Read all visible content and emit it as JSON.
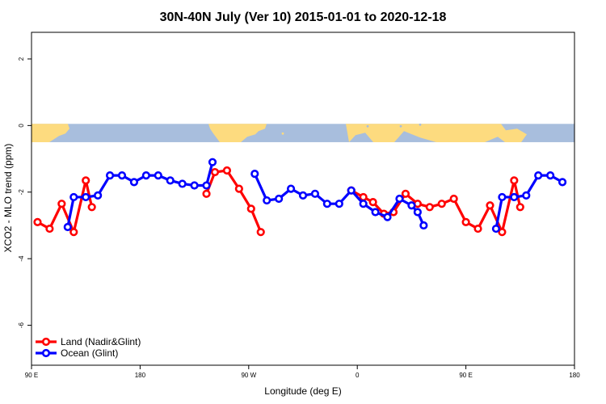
{
  "chart_data": {
    "type": "line",
    "title": "30N-40N July (Ver 10)   2015-01-01 to 2020-12-18",
    "xlabel": "Longitude (deg E)",
    "ylabel": "XCO2 - MLO trend (ppm)",
    "xlim": [
      90,
      540
    ],
    "ylim": [
      -7.2,
      2.8
    ],
    "x_ticks": [
      {
        "value": 90,
        "label": "90 E"
      },
      {
        "value": 180,
        "label": "180"
      },
      {
        "value": 270,
        "label": "90 W"
      },
      {
        "value": 360,
        "label": "0"
      },
      {
        "value": 450,
        "label": "90 E"
      },
      {
        "value": 540,
        "label": "180"
      }
    ],
    "y_ticks": [
      {
        "value": 2,
        "label": "2"
      },
      {
        "value": 0,
        "label": "0"
      },
      {
        "value": -2,
        "label": "-2"
      },
      {
        "value": -4,
        "label": "-4"
      },
      {
        "value": -6,
        "label": "-6"
      }
    ],
    "grid": false,
    "legend_position": "bottom-left",
    "map_strip": {
      "y_top": 0.05,
      "y_bottom": -0.5,
      "ocean_color": "#a8bedd",
      "land_color": "#fddb7f"
    },
    "series": [
      {
        "name": "Land (Nadir&Glint)",
        "color": "#ff0000",
        "segments": [
          [
            [
              95,
              -2.9
            ],
            [
              105,
              -3.1
            ],
            [
              115,
              -2.35
            ],
            [
              125,
              -3.2
            ],
            [
              135,
              -1.65
            ],
            [
              140,
              -2.45
            ]
          ],
          [
            [
              235,
              -2.05
            ],
            [
              242,
              -1.4
            ],
            [
              252,
              -1.35
            ],
            [
              262,
              -1.9
            ],
            [
              272,
              -2.5
            ],
            [
              280,
              -3.2
            ]
          ],
          [
            [
              355,
              -1.95
            ],
            [
              365,
              -2.15
            ],
            [
              373,
              -2.3
            ],
            [
              382,
              -2.65
            ],
            [
              390,
              -2.6
            ],
            [
              400,
              -2.05
            ],
            [
              410,
              -2.35
            ],
            [
              420,
              -2.45
            ],
            [
              430,
              -2.35
            ],
            [
              440,
              -2.2
            ],
            [
              450,
              -2.9
            ],
            [
              460,
              -3.1
            ],
            [
              470,
              -2.4
            ],
            [
              480,
              -3.2
            ],
            [
              490,
              -1.65
            ],
            [
              495,
              -2.45
            ]
          ]
        ]
      },
      {
        "name": "Ocean (Glint)",
        "color": "#0000ff",
        "segments": [
          [
            [
              120,
              -3.05
            ],
            [
              125,
              -2.15
            ],
            [
              135,
              -2.15
            ],
            [
              145,
              -2.1
            ],
            [
              155,
              -1.5
            ],
            [
              165,
              -1.5
            ],
            [
              175,
              -1.7
            ],
            [
              185,
              -1.5
            ],
            [
              195,
              -1.5
            ],
            [
              205,
              -1.65
            ],
            [
              215,
              -1.75
            ],
            [
              225,
              -1.8
            ],
            [
              235,
              -1.8
            ],
            [
              240,
              -1.1
            ]
          ],
          [
            [
              275,
              -1.45
            ],
            [
              285,
              -2.25
            ],
            [
              295,
              -2.2
            ],
            [
              305,
              -1.9
            ],
            [
              315,
              -2.1
            ],
            [
              325,
              -2.05
            ],
            [
              335,
              -2.35
            ],
            [
              345,
              -2.35
            ],
            [
              355,
              -1.95
            ],
            [
              365,
              -2.35
            ],
            [
              375,
              -2.6
            ],
            [
              385,
              -2.75
            ],
            [
              395,
              -2.2
            ],
            [
              405,
              -2.4
            ],
            [
              410,
              -2.6
            ],
            [
              415,
              -3.0
            ]
          ],
          [
            [
              475,
              -3.1
            ],
            [
              480,
              -2.15
            ],
            [
              490,
              -2.15
            ],
            [
              500,
              -2.1
            ],
            [
              510,
              -1.5
            ],
            [
              520,
              -1.5
            ],
            [
              530,
              -1.7
            ]
          ]
        ]
      }
    ]
  }
}
